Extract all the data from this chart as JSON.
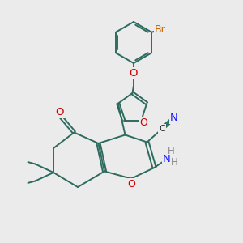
{
  "bg_color": "#ebebeb",
  "bond_color": "#2d6b5e",
  "bond_width": 1.4,
  "atom_colors": {
    "O": "#cc0000",
    "N": "#1a1aff",
    "Br": "#cc6600",
    "C": "#222222",
    "H": "#888888"
  },
  "font_size": 8.5
}
